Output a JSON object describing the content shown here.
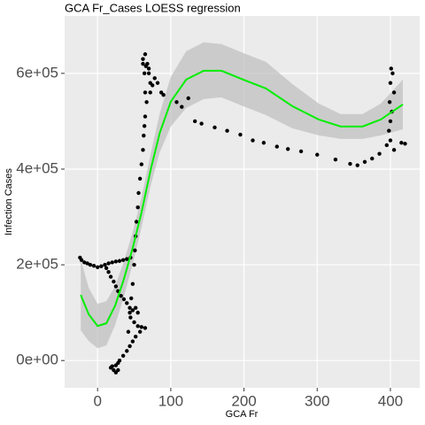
{
  "chart_data": {
    "type": "scatter",
    "title": "GCA Fr_Cases LOESS regression",
    "x_label": "GCA Fr",
    "y_label": "Infection Cases",
    "xlim": [
      -45,
      440
    ],
    "ylim": [
      -57000,
      720000
    ],
    "xticks": [
      0,
      100,
      200,
      300,
      400
    ],
    "yticks": [
      {
        "value": 0,
        "label": "0e+00"
      },
      {
        "value": 200000,
        "label": "2e+05"
      },
      {
        "value": 400000,
        "label": "4e+05"
      },
      {
        "value": 600000,
        "label": "6e+05"
      }
    ],
    "grid": true,
    "points": {
      "color": "#000000",
      "x": [
        -24,
        -22,
        -18,
        -14,
        -10,
        -5,
        0,
        5,
        10,
        15,
        20,
        25,
        30,
        35,
        40,
        45,
        12,
        15,
        18,
        22,
        25,
        28,
        32,
        36,
        40,
        44,
        48,
        52,
        55,
        45,
        50,
        55,
        60,
        65,
        58,
        52,
        48,
        44,
        40,
        35,
        30,
        28,
        25,
        20,
        18,
        22,
        25,
        28,
        42,
        44,
        46,
        48,
        50,
        51,
        52,
        53,
        55,
        56,
        58,
        60,
        62,
        63,
        64,
        65,
        67,
        65,
        64,
        62,
        62,
        65,
        68,
        70,
        72,
        75,
        72,
        78,
        82,
        87,
        90,
        70,
        66,
        108,
        124,
        115,
        133,
        142,
        160,
        177,
        195,
        212,
        227,
        245,
        260,
        278,
        300,
        325,
        345,
        355,
        365,
        375,
        385,
        395,
        398,
        400,
        399,
        400,
        401,
        403,
        405,
        402,
        400,
        405,
        415,
        420
      ],
      "values": [
        215000,
        210000,
        205000,
        203000,
        200000,
        198000,
        195000,
        197000,
        200000,
        203000,
        205000,
        207000,
        208000,
        210000,
        212000,
        215000,
        193000,
        185000,
        175000,
        165000,
        155000,
        145000,
        135000,
        128000,
        120000,
        110000,
        105000,
        110000,
        100000,
        90000,
        80000,
        72000,
        70000,
        68000,
        60000,
        50000,
        40000,
        30000,
        20000,
        10000,
        0,
        -5000,
        -10000,
        -12000,
        -15000,
        -20000,
        -25000,
        -20000,
        60000,
        100000,
        130000,
        160000,
        200000,
        230000,
        260000,
        290000,
        320000,
        350000,
        380000,
        410000,
        440000,
        470000,
        490000,
        510000,
        540000,
        560000,
        600000,
        620000,
        630000,
        640000,
        620000,
        600000,
        580000,
        575000,
        560000,
        590000,
        580000,
        560000,
        555000,
        610000,
        615000,
        540000,
        548000,
        530000,
        500000,
        495000,
        487000,
        480000,
        472000,
        460000,
        455000,
        447000,
        442000,
        437000,
        430000,
        420000,
        411000,
        408000,
        415000,
        422000,
        432000,
        450000,
        480000,
        500000,
        540000,
        580000,
        610000,
        600000,
        560000,
        520000,
        460000,
        440000,
        455000,
        453000
      ]
    },
    "fit": {
      "color": "#00ee00",
      "band_color": "#bdbdbd",
      "x": [
        -23,
        -12,
        0,
        12,
        24,
        36,
        48,
        60,
        73,
        85,
        100,
        121,
        145,
        169,
        199,
        230,
        266,
        302,
        332,
        362,
        387,
        417
      ],
      "values": [
        137000,
        96300,
        72200,
        77800,
        114800,
        170400,
        235200,
        309300,
        401900,
        476000,
        540800,
        587000,
        605600,
        605600,
        587000,
        568500,
        531500,
        503700,
        489000,
        489000,
        503700,
        535200
      ],
      "lower": [
        63000,
        40700,
        25900,
        31500,
        74100,
        133400,
        201900,
        277800,
        368600,
        435300,
        488900,
        527700,
        546300,
        550000,
        531400,
        512900,
        485200,
        470400,
        463100,
        463100,
        470400,
        483300
      ],
      "upper": [
        211000,
        151900,
        118500,
        124100,
        155500,
        207400,
        268500,
        340800,
        435200,
        516700,
        592700,
        646300,
        664900,
        661200,
        642600,
        624100,
        577800,
        537000,
        514900,
        514900,
        537000,
        587100
      ]
    }
  }
}
